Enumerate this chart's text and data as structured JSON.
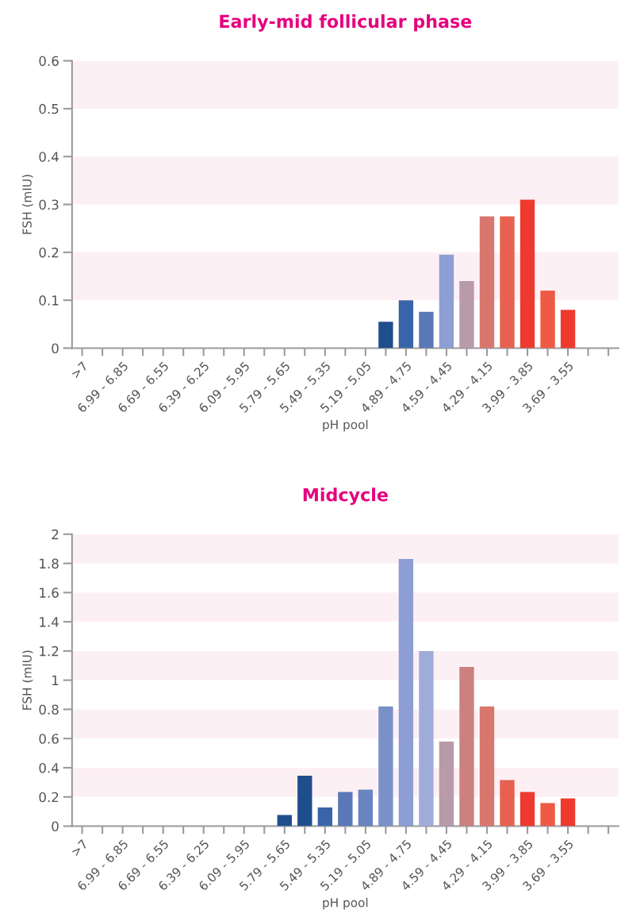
{
  "chart_data": [
    {
      "type": "bar",
      "title": "Early-mid follicular phase",
      "xlabel": "pH pool",
      "ylabel": "FSH (mIU)",
      "categories": [
        ">7",
        null,
        "6.99 - 6.85",
        null,
        "6.69 - 6.55",
        null,
        "6.39 - 6.25",
        null,
        "6.09 - 5.95",
        null,
        "5.79 - 5.65",
        null,
        "5.49 - 5.35",
        null,
        "5.19 - 5.05",
        null,
        "4.89 - 4.75",
        null,
        "4.59 - 4.45",
        null,
        "4.29 - 4.15",
        null,
        "3.99 - 3.85",
        null,
        "3.69 - 3.55",
        null,
        null
      ],
      "values": [
        null,
        null,
        null,
        null,
        null,
        null,
        null,
        null,
        null,
        null,
        null,
        null,
        null,
        null,
        null,
        0.055,
        0.1,
        0.076,
        0.195,
        0.14,
        0.275,
        0.275,
        0.31,
        0.12,
        0.08,
        null,
        null
      ],
      "colors": [
        "#1f4e8c",
        "#1f4e8c",
        "#1f4e8c",
        "#1f4e8c",
        "#1f4e8c",
        "#1f4e8c",
        "#1f4e8c",
        "#1f4e8c",
        "#1f4e8c",
        "#1f4e8c",
        "#1f4e8c",
        "#1f4e8c",
        "#1f4e8c",
        "#1f4e8c",
        "#1f4e8c",
        "#1f4e8c",
        "#3a64a8",
        "#5a78b8",
        "#8c9ed4",
        "#b89aa8",
        "#d9766e",
        "#e8604f",
        "#ee3a2e",
        "#ef5a45",
        "#ee3a2e",
        "#ee3a2e",
        "#ee3a2e"
      ],
      "ylim": [
        0,
        0.6
      ],
      "yticks": [
        0,
        0.1,
        0.2,
        0.3,
        0.4,
        0.5,
        0.6
      ],
      "bands": [
        {
          "axis": "y",
          "from": 0.1,
          "to": 0.2,
          "color": "#fdf0f4"
        },
        {
          "axis": "y",
          "from": 0.3,
          "to": 0.4,
          "color": "#fdf0f4"
        },
        {
          "axis": "y",
          "from": 0.5,
          "to": 0.6,
          "color": "#fdf0f4"
        }
      ]
    },
    {
      "type": "bar",
      "title": "Midcycle",
      "xlabel": "pH pool",
      "ylabel": "FSH (mIU)",
      "categories": [
        ">7",
        null,
        "6.99 - 6.85",
        null,
        "6.69 - 6.55",
        null,
        "6.39 - 6.25",
        null,
        "6.09 - 5.95",
        null,
        "5.79 - 5.65",
        null,
        "5.49 - 5.35",
        null,
        "5.19 - 5.05",
        null,
        "4.89 - 4.75",
        null,
        "4.59 - 4.45",
        null,
        "4.29 - 4.15",
        null,
        "3.99 - 3.85",
        null,
        "3.69 - 3.55",
        null,
        null
      ],
      "values": [
        null,
        null,
        null,
        null,
        null,
        null,
        null,
        null,
        null,
        null,
        0.076,
        0.345,
        0.128,
        0.234,
        0.25,
        0.82,
        1.83,
        1.2,
        0.58,
        1.09,
        0.82,
        0.315,
        0.234,
        0.158,
        0.19,
        null,
        null
      ],
      "colors": [
        "#1f4e8c",
        "#1f4e8c",
        "#1f4e8c",
        "#1f4e8c",
        "#1f4e8c",
        "#1f4e8c",
        "#1f4e8c",
        "#1f4e8c",
        "#1f4e8c",
        "#1f4e8c",
        "#1f4e8c",
        "#1f4e8c",
        "#3a64a8",
        "#5a78b8",
        "#6a84c0",
        "#7a90c8",
        "#8c9ed4",
        "#a0acd8",
        "#b89aa8",
        "#cc8080",
        "#d9766e",
        "#e8604f",
        "#ee3a2e",
        "#ef5a45",
        "#ee3a2e",
        "#ee3a2e",
        "#ee3a2e"
      ],
      "ylim": [
        0,
        2
      ],
      "yticks": [
        0,
        0.2,
        0.4,
        0.6,
        0.8,
        1,
        1.2,
        1.4,
        1.6,
        1.8,
        2
      ],
      "bands": [
        {
          "axis": "y",
          "from": 0.2,
          "to": 0.4,
          "color": "#fdf0f4"
        },
        {
          "axis": "y",
          "from": 0.6,
          "to": 0.8,
          "color": "#fdf0f4"
        },
        {
          "axis": "y",
          "from": 1,
          "to": 1.2,
          "color": "#fdf0f4"
        },
        {
          "axis": "y",
          "from": 1.4,
          "to": 1.6,
          "color": "#fdf0f4"
        },
        {
          "axis": "y",
          "from": 1.8,
          "to": 2,
          "color": "#fdf0f4"
        }
      ]
    }
  ]
}
